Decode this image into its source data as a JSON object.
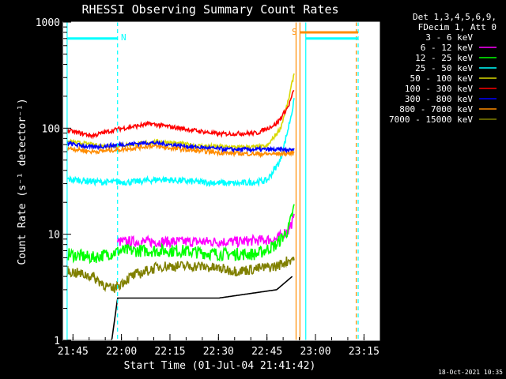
{
  "chart_data": {
    "type": "line",
    "title": "RHESSI Observing Summary Count Rates",
    "xlabel": "Start Time (01-Jul-04 21:41:42)",
    "ylabel": "Count Rate (s⁻¹ detector⁻¹)",
    "yscale": "log",
    "ylim": [
      1,
      1000
    ],
    "xlim_minutes": [
      21.7,
      22.0,
      23.33
    ],
    "x_ticks": [
      "21:45",
      "22:00",
      "22:15",
      "22:30",
      "22:45",
      "23:00",
      "23:15"
    ],
    "y_ticks": [
      "1",
      "10",
      "100",
      "1000"
    ],
    "legend": {
      "header": [
        "Det 1,3,4,5,6,9,",
        "FDecim 1, Att 0"
      ],
      "entries": [
        {
          "label": "3 - 6 keV",
          "color": "#000000"
        },
        {
          "label": "6 - 12 keV",
          "color": "#ff00ff"
        },
        {
          "label": "12 - 25 keV",
          "color": "#00ff00"
        },
        {
          "label": "25 - 50 keV",
          "color": "#00ffff"
        },
        {
          "label": "50 - 100 keV",
          "color": "#d8d800"
        },
        {
          "label": "100 - 300 keV",
          "color": "#ff0000"
        },
        {
          "label": "300 - 800 keV",
          "color": "#0000ff"
        },
        {
          "label": "800 - 7000 keV",
          "color": "#ff8c00"
        },
        {
          "label": "7000 - 15000 keV",
          "color": "#808000"
        }
      ]
    },
    "annotations": {
      "night_label": "N",
      "saa_label": "S",
      "timestamp": "18-Oct-2021 10:35"
    },
    "series": [
      {
        "name": "3 - 6 keV",
        "color": "#000000",
        "noise": 0.0,
        "points": [
          [
            21.72,
            1
          ],
          [
            21.95,
            1
          ],
          [
            21.98,
            2.5
          ],
          [
            22.2,
            2.5
          ],
          [
            22.5,
            2.5
          ],
          [
            22.8,
            3
          ],
          [
            22.88,
            4
          ]
        ]
      },
      {
        "name": "6 - 12 keV",
        "color": "#ff00ff",
        "noise": 0.05,
        "points": [
          [
            21.98,
            8.5
          ],
          [
            22.3,
            8.5
          ],
          [
            22.6,
            8.5
          ],
          [
            22.8,
            9
          ],
          [
            22.86,
            11
          ],
          [
            22.89,
            14
          ]
        ]
      },
      {
        "name": "12 - 25 keV",
        "color": "#00ff00",
        "noise": 0.06,
        "points": [
          [
            21.72,
            6.5
          ],
          [
            21.85,
            6
          ],
          [
            22.0,
            7
          ],
          [
            22.15,
            7
          ],
          [
            22.3,
            7
          ],
          [
            22.5,
            6.5
          ],
          [
            22.7,
            6.5
          ],
          [
            22.8,
            8
          ],
          [
            22.86,
            11
          ],
          [
            22.89,
            18
          ]
        ]
      },
      {
        "name": "25 - 50 keV",
        "color": "#00ffff",
        "noise": 0.03,
        "points": [
          [
            21.72,
            33
          ],
          [
            21.9,
            31
          ],
          [
            22.05,
            31
          ],
          [
            22.2,
            33
          ],
          [
            22.4,
            31
          ],
          [
            22.6,
            30
          ],
          [
            22.75,
            32
          ],
          [
            22.82,
            50
          ],
          [
            22.86,
            100
          ],
          [
            22.89,
            180
          ]
        ]
      },
      {
        "name": "50 - 100 keV",
        "color": "#d8d800",
        "noise": 0.02,
        "points": [
          [
            21.72,
            75
          ],
          [
            21.9,
            68
          ],
          [
            22.05,
            70
          ],
          [
            22.2,
            75
          ],
          [
            22.4,
            68
          ],
          [
            22.6,
            66
          ],
          [
            22.75,
            67
          ],
          [
            22.82,
            100
          ],
          [
            22.86,
            180
          ],
          [
            22.89,
            330
          ]
        ]
      },
      {
        "name": "100 - 300 keV",
        "color": "#ff0000",
        "noise": 0.02,
        "points": [
          [
            21.72,
            95
          ],
          [
            21.85,
            85
          ],
          [
            21.98,
            98
          ],
          [
            22.15,
            110
          ],
          [
            22.3,
            100
          ],
          [
            22.5,
            88
          ],
          [
            22.7,
            90
          ],
          [
            22.8,
            110
          ],
          [
            22.86,
            160
          ],
          [
            22.89,
            230
          ]
        ]
      },
      {
        "name": "300 - 800 keV",
        "color": "#0000ff",
        "noise": 0.02,
        "points": [
          [
            21.72,
            72
          ],
          [
            21.85,
            66
          ],
          [
            22.0,
            70
          ],
          [
            22.15,
            73
          ],
          [
            22.35,
            67
          ],
          [
            22.55,
            63
          ],
          [
            22.75,
            63
          ],
          [
            22.89,
            62
          ]
        ]
      },
      {
        "name": "800 - 7000 keV",
        "color": "#ff8c00",
        "noise": 0.02,
        "points": [
          [
            21.72,
            65
          ],
          [
            21.85,
            60
          ],
          [
            22.0,
            63
          ],
          [
            22.15,
            68
          ],
          [
            22.35,
            62
          ],
          [
            22.55,
            58
          ],
          [
            22.75,
            57
          ],
          [
            22.89,
            58
          ]
        ]
      },
      {
        "name": "7000 - 15000 keV",
        "color": "#808000",
        "noise": 0.05,
        "points": [
          [
            21.72,
            4.5
          ],
          [
            21.85,
            4
          ],
          [
            21.95,
            3
          ],
          [
            22.05,
            4
          ],
          [
            22.2,
            5
          ],
          [
            22.4,
            5
          ],
          [
            22.6,
            4.5
          ],
          [
            22.8,
            5
          ],
          [
            22.89,
            6
          ]
        ]
      }
    ],
    "flag_bars": [
      {
        "label_ref": "night",
        "color": "#00ffff",
        "y": 700,
        "x_start": 21.72,
        "x_end": 21.98
      },
      {
        "label_ref": "night",
        "color": "#00ffff",
        "y": 700,
        "x_start": 22.95,
        "x_end": 23.22
      },
      {
        "label_ref": "saa",
        "color": "#ff8c00",
        "y": 800,
        "x_start": 22.92,
        "x_end": 23.22
      }
    ],
    "vertical_markers": [
      {
        "color": "#00ffff",
        "style": "solid",
        "x": 21.72
      },
      {
        "color": "#00ffff",
        "style": "dashed",
        "x": 21.98
      },
      {
        "color": "#ff8c00",
        "style": "solid",
        "x": 22.9
      },
      {
        "color": "#ff8c00",
        "style": "solid",
        "x": 22.92
      },
      {
        "color": "#00ffff",
        "style": "solid",
        "x": 22.95
      },
      {
        "color": "#ff8c00",
        "style": "dashed",
        "x": 23.21
      },
      {
        "color": "#00ffff",
        "style": "dashed",
        "x": 23.22
      }
    ]
  }
}
